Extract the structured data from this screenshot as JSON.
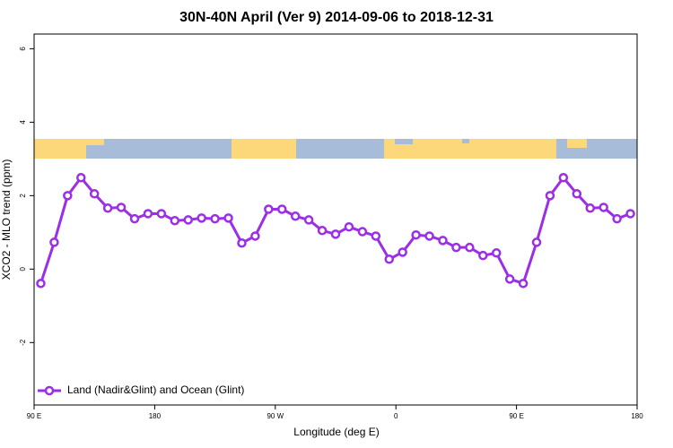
{
  "chart_data": {
    "type": "line",
    "title": "30N-40N April (Ver 9)   2014-09-06 to 2018-12-31",
    "x_label": "Longitude (deg E)",
    "y_label": "XCO2 - MLO trend (ppm)",
    "xlim": [
      90,
      540
    ],
    "ylim": [
      -3.7,
      6.4
    ],
    "xticks": [
      {
        "value": 90,
        "label": "90 E"
      },
      180,
      {
        "value": 270,
        "label": "90 W"
      },
      {
        "value": 360,
        "label": "0"
      },
      {
        "value": 450,
        "label": "90 E"
      },
      {
        "value": 540,
        "label": "180"
      }
    ],
    "yticks": [
      -2,
      0,
      2,
      4,
      6
    ],
    "legend": "bottom-left",
    "x": [
      95,
      105,
      115,
      125,
      135,
      145,
      155,
      165,
      175,
      185,
      195,
      205,
      215,
      225,
      235,
      245,
      255,
      265,
      275,
      285,
      295,
      305,
      315,
      325,
      335,
      345,
      355,
      365,
      375,
      385,
      395,
      405,
      415,
      425,
      435,
      445,
      455,
      465,
      475,
      485,
      495,
      505,
      515,
      525,
      535
    ],
    "series": [
      {
        "name": "Land (Nadir&Glint) and Ocean (Glint)",
        "color": "#9b2ee6",
        "values": [
          -0.39,
          0.73,
          2.0,
          2.49,
          2.05,
          1.66,
          1.68,
          1.37,
          1.51,
          1.51,
          1.32,
          1.34,
          1.39,
          1.37,
          1.39,
          0.71,
          0.9,
          1.63,
          1.63,
          1.44,
          1.34,
          1.05,
          0.95,
          1.15,
          1.02,
          0.9,
          0.27,
          0.46,
          0.93,
          0.9,
          0.78,
          0.59,
          0.59,
          0.37,
          0.44,
          -0.27,
          -0.39,
          0.73,
          2.0,
          2.49,
          2.05,
          1.66,
          1.68,
          1.37,
          1.51
        ]
      }
    ]
  }
}
